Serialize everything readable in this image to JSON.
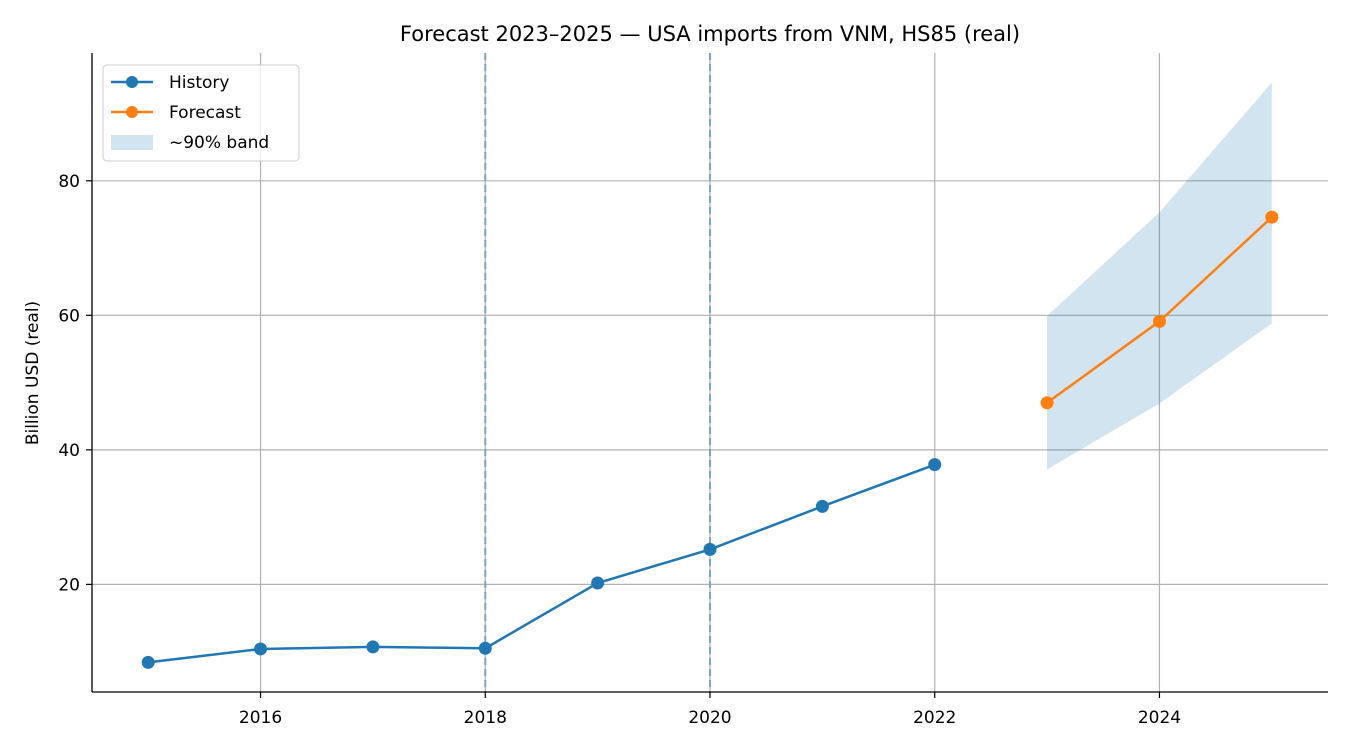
{
  "colors": {
    "history": "#1f77b4",
    "forecast": "#ff7f0e",
    "band": "#1f77b4",
    "grid": "#b0b0b0",
    "event_line": "#7ea4c0"
  },
  "chart_data": {
    "type": "line",
    "title": "Forecast 2023–2025 — USA imports from VNM, HS85 (real)",
    "xlabel": "",
    "ylabel": "Billion USD (real)",
    "xlim": [
      2014.5,
      2025.5
    ],
    "ylim": [
      4.0,
      99.0
    ],
    "x_ticks": [
      2016,
      2018,
      2020,
      2022,
      2024
    ],
    "y_ticks": [
      20,
      40,
      60,
      80
    ],
    "grid": true,
    "legend_position": "top-left",
    "event_lines": [
      2018,
      2020
    ],
    "series": [
      {
        "name": "History",
        "color_key": "history",
        "x": [
          2015,
          2016,
          2017,
          2018,
          2019,
          2020,
          2021,
          2022
        ],
        "y": [
          8.4,
          10.4,
          10.7,
          10.5,
          20.2,
          25.2,
          31.6,
          37.8
        ]
      },
      {
        "name": "Forecast",
        "color_key": "forecast",
        "x": [
          2023,
          2024,
          2025
        ],
        "y": [
          47.0,
          59.1,
          74.6
        ]
      }
    ],
    "band": {
      "name": "~90% band",
      "x": [
        2023,
        2024,
        2025
      ],
      "lower": [
        37.1,
        46.9,
        58.8
      ],
      "upper": [
        59.9,
        75.3,
        94.6
      ]
    }
  }
}
